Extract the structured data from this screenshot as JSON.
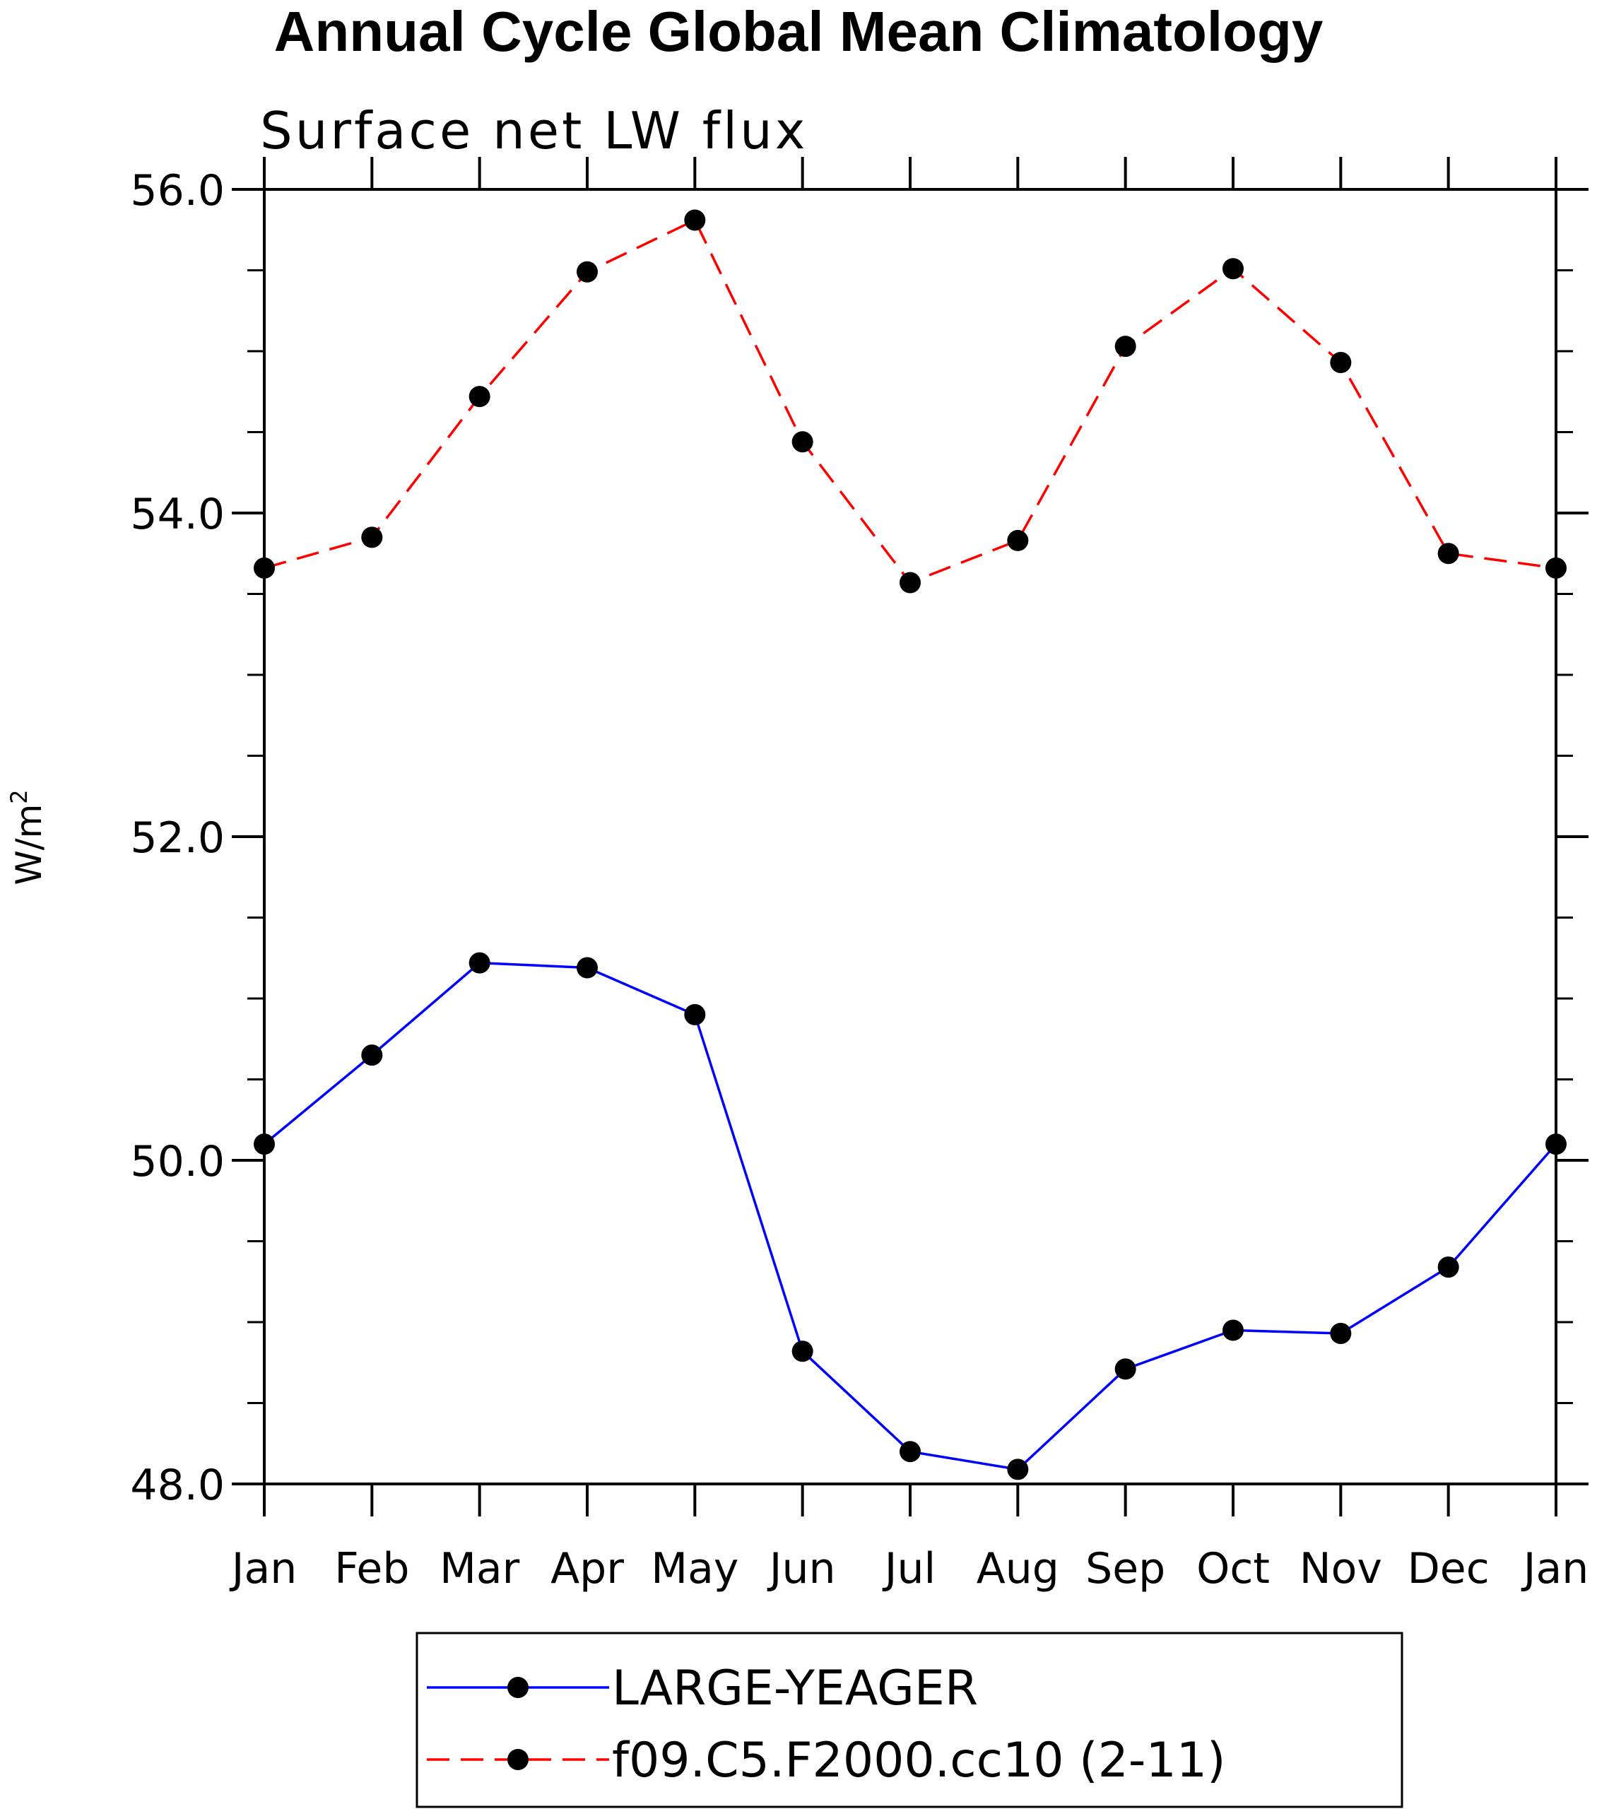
{
  "chart_data": {
    "type": "line",
    "title": "Annual Cycle Global Mean Climatology",
    "subtitle": "Surface net LW flux",
    "xlabel": "",
    "ylabel": "W/m",
    "ylabel_superscript": "2",
    "categories": [
      "Jan",
      "Feb",
      "Mar",
      "Apr",
      "May",
      "Jun",
      "Jul",
      "Aug",
      "Sep",
      "Oct",
      "Nov",
      "Dec",
      "Jan"
    ],
    "ylim": [
      48.0,
      56.0
    ],
    "yticks": [
      "48.0",
      "50.0",
      "52.0",
      "54.0",
      "56.0"
    ],
    "ytick_values": [
      48,
      50,
      52,
      54,
      56
    ],
    "y_minor_step": 0.5,
    "grid": false,
    "legend_position": "bottom-center",
    "series": [
      {
        "name": "LARGE-YEAGER",
        "color": "#0000ff",
        "dash": "solid",
        "marker": "filled-circle",
        "values": [
          50.1,
          50.65,
          51.22,
          51.19,
          50.9,
          48.82,
          48.2,
          48.09,
          48.71,
          48.95,
          48.93,
          49.34,
          50.1
        ]
      },
      {
        "name": "f09.C5.F2000.cc10 (2-11)",
        "color": "#ff0000",
        "dash": "dashed",
        "marker": "filled-circle",
        "values": [
          53.66,
          53.85,
          54.72,
          55.49,
          55.81,
          54.44,
          53.57,
          53.83,
          55.03,
          55.51,
          54.93,
          53.75,
          53.66
        ]
      }
    ]
  }
}
